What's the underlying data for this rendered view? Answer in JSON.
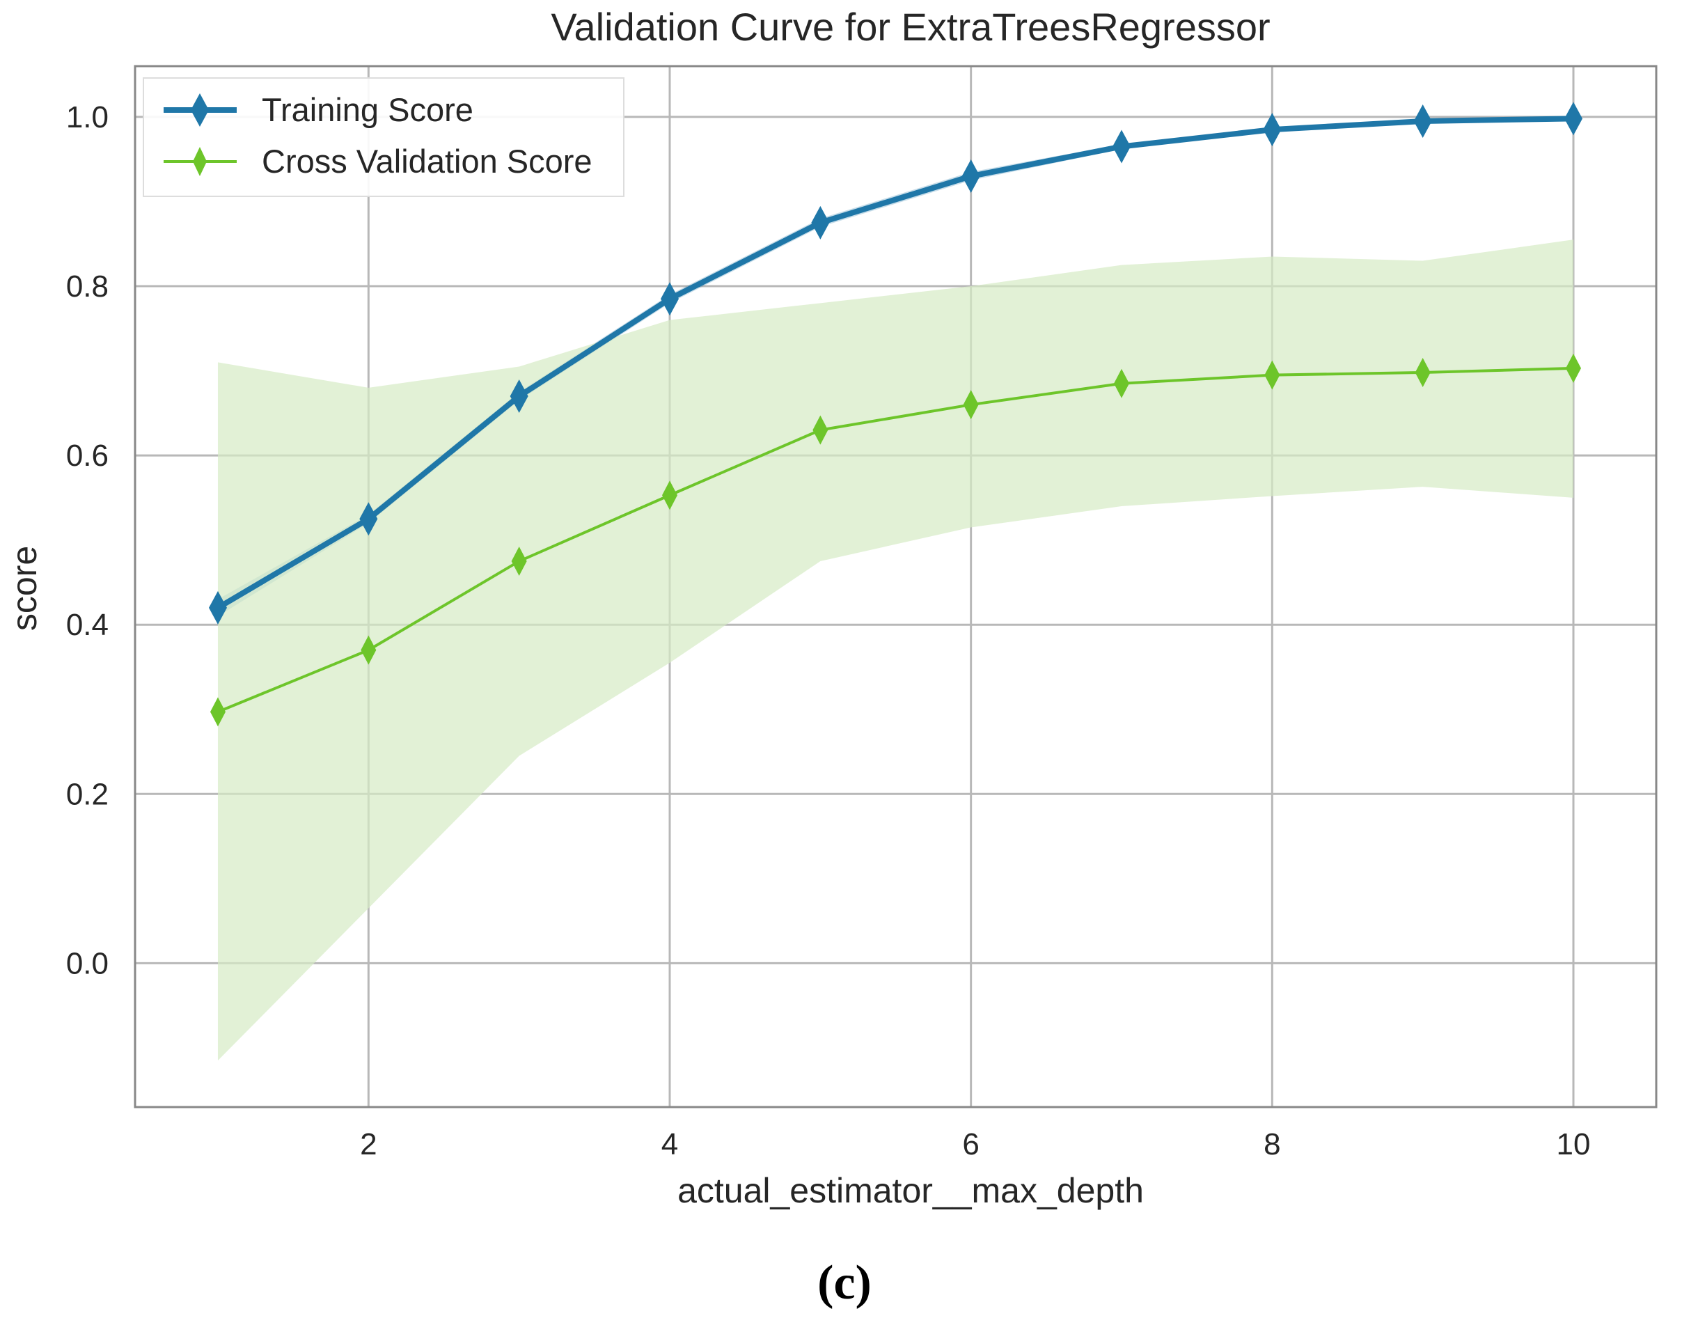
{
  "chart_data": {
    "type": "line",
    "title": "Validation Curve for ExtraTreesRegressor",
    "xlabel": "actual_estimator__max_depth",
    "ylabel": "score",
    "x": [
      1,
      2,
      3,
      4,
      5,
      6,
      7,
      8,
      9,
      10
    ],
    "xlim": [
      0.45,
      10.55
    ],
    "ylim": [
      -0.17,
      1.06
    ],
    "xticks": [
      2,
      4,
      6,
      8,
      10
    ],
    "xtick_labels": [
      "2",
      "4",
      "6",
      "8",
      "10"
    ],
    "yticks": [
      0.0,
      0.2,
      0.4,
      0.6,
      0.8,
      1.0
    ],
    "ytick_labels": [
      "0.0",
      "0.2",
      "0.4",
      "0.6",
      "0.8",
      "1.0"
    ],
    "grid": true,
    "legend_position": "top-left",
    "series": [
      {
        "name": "Training Score",
        "color": "#1f77a8",
        "values": [
          0.42,
          0.525,
          0.67,
          0.785,
          0.875,
          0.93,
          0.965,
          0.985,
          0.995,
          0.998
        ],
        "band_upper": [
          0.43,
          0.53,
          0.675,
          0.79,
          0.88,
          0.935,
          0.968,
          0.988,
          0.997,
          1.0
        ],
        "band_lower": [
          0.41,
          0.52,
          0.665,
          0.78,
          0.87,
          0.925,
          0.962,
          0.982,
          0.993,
          0.996
        ]
      },
      {
        "name": "Cross Validation Score",
        "color": "#6dc52a",
        "band_color": "#d6ebc4",
        "values": [
          0.297,
          0.37,
          0.475,
          0.553,
          0.63,
          0.66,
          0.685,
          0.695,
          0.698,
          0.703
        ],
        "band_upper": [
          0.71,
          0.68,
          0.705,
          0.76,
          0.78,
          0.8,
          0.825,
          0.835,
          0.83,
          0.855
        ],
        "band_lower": [
          -0.115,
          0.065,
          0.245,
          0.355,
          0.475,
          0.515,
          0.54,
          0.552,
          0.563,
          0.55
        ]
      }
    ]
  },
  "caption": "(c)"
}
